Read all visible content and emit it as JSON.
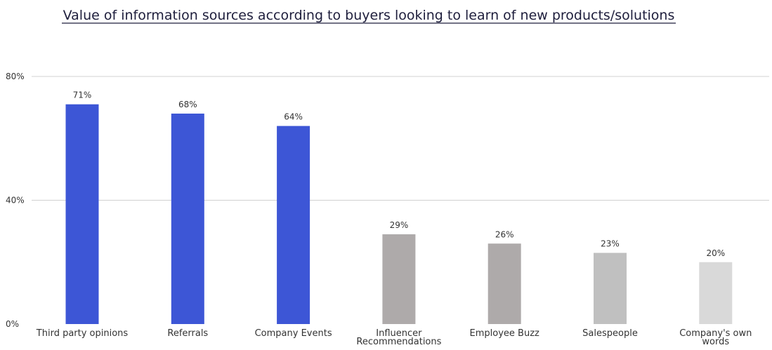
{
  "chart_data": {
    "type": "bar",
    "title": "Value of information sources according to buyers looking to learn of new products/solutions",
    "xlabel": "",
    "ylabel": "",
    "ylim": [
      0,
      80
    ],
    "y_ticks": [
      0,
      40,
      80
    ],
    "y_tick_labels": [
      "0%",
      "40%",
      "80%"
    ],
    "grid": true,
    "categories": [
      [
        "Third party opinions"
      ],
      [
        "Referrals"
      ],
      [
        "Company Events"
      ],
      [
        "Influencer",
        "Recommendations"
      ],
      [
        "Employee Buzz"
      ],
      [
        "Salespeople"
      ],
      [
        "Company's own",
        "words"
      ]
    ],
    "values": [
      71,
      68,
      64,
      29,
      26,
      23,
      20
    ],
    "value_labels": [
      "71%",
      "68%",
      "64%",
      "29%",
      "26%",
      "23%",
      "20%"
    ],
    "bar_colors": [
      "#3d56d6",
      "#3d56d6",
      "#3d56d6",
      "#aeaaaa",
      "#aeaaaa",
      "#c0c0c0",
      "#d9d9d9"
    ]
  }
}
